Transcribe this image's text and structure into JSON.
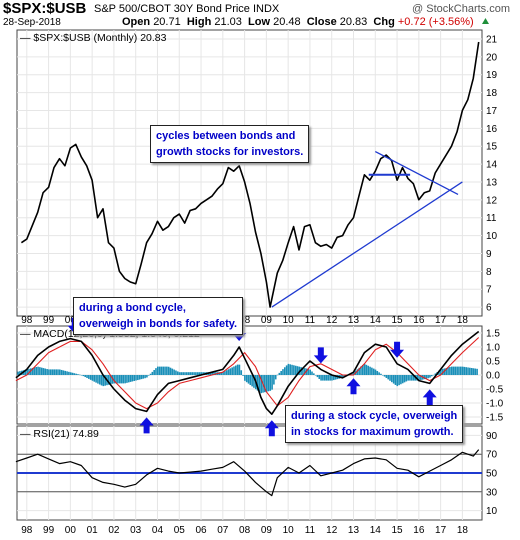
{
  "header": {
    "symbol": "$SPX:$USB",
    "name": "S&P 500/CBOT 30Y Bond Price INDX",
    "brand": "@ StockCharts.com",
    "date": "28-Sep-2018",
    "open_label": "Open",
    "open_value": "20.71",
    "high_label": "High",
    "high_value": "21.03",
    "low_label": "Low",
    "low_value": "20.48",
    "close_label": "Close",
    "close_value": "20.83",
    "chg_label": "Chg",
    "chg_value": "+0.72 (+3.56%)",
    "chg_arrow": "triangle-up-icon"
  },
  "annotations": {
    "cycles": [
      "cycles between bonds and",
      "growth stocks for investors."
    ],
    "bond_cycle": [
      "during a bond cycle,",
      "overweigh in bonds for safety."
    ],
    "stock_cycle": [
      "during a stock cycle, overweigh",
      "in stocks for maximum growth."
    ]
  },
  "colors": {
    "price_line": "#000000",
    "trendline": "#1f3ad0",
    "macd_line": "#000000",
    "signal_line": "#e02020",
    "histogram": "#1a8fb8",
    "arrow": "#1010e0",
    "annotation_text": "#0000c8",
    "rsi_level_line": "#1f3ad0"
  },
  "chart_data": [
    {
      "type": "line",
      "legend": "$SPX:$USB (Monthly) 20.83",
      "x_tick_labels": [
        "98",
        "99",
        "00",
        "01",
        "02",
        "03",
        "04",
        "05",
        "06",
        "07",
        "08",
        "09",
        "10",
        "11",
        "12",
        "13",
        "14",
        "15",
        "16",
        "17",
        "18"
      ],
      "ylim": [
        5.5,
        21.5
      ],
      "y_ticks": [
        6,
        7,
        8,
        9,
        10,
        11,
        12,
        13,
        14,
        15,
        16,
        17,
        18,
        19,
        20,
        21
      ],
      "series": [
        {
          "x": [
            1997.75,
            1998.0,
            1998.5,
            1998.75,
            1999.0,
            1999.25,
            1999.5,
            1999.75,
            2000.0,
            2000.25,
            2000.5,
            2000.75,
            2001.0,
            2001.25,
            2001.5,
            2001.75,
            2002.0,
            2002.25,
            2002.5,
            2002.75,
            2003.0,
            2003.25,
            2003.5,
            2003.75,
            2004.0,
            2004.25,
            2004.5,
            2004.75,
            2005.0,
            2005.25,
            2005.5,
            2005.75,
            2006.0,
            2006.25,
            2006.5,
            2006.75,
            2007.0,
            2007.25,
            2007.5,
            2007.75,
            2008.0,
            2008.25,
            2008.5,
            2008.75,
            2009.0,
            2009.17,
            2009.5,
            2009.75,
            2010.0,
            2010.25,
            2010.5,
            2010.75,
            2011.0,
            2011.25,
            2011.5,
            2011.75,
            2012.0,
            2012.25,
            2012.5,
            2012.75,
            2013.0,
            2013.25,
            2013.5,
            2013.75,
            2014.0,
            2014.25,
            2014.5,
            2014.75,
            2015.0,
            2015.25,
            2015.5,
            2015.75,
            2016.0,
            2016.25,
            2016.5,
            2016.75,
            2017.0,
            2017.25,
            2017.5,
            2017.75,
            2018.0,
            2018.25,
            2018.5,
            2018.75
          ],
          "values": [
            9.6,
            9.8,
            11.3,
            12.4,
            12.7,
            13.8,
            14.3,
            13.9,
            14.9,
            15.1,
            14.4,
            13.9,
            13.1,
            11.0,
            11.5,
            9.6,
            9.3,
            8.0,
            7.6,
            7.4,
            7.3,
            8.4,
            9.6,
            10.1,
            10.8,
            10.3,
            10.5,
            11.0,
            11.2,
            10.7,
            11.4,
            11.5,
            11.8,
            12.0,
            12.2,
            12.6,
            12.9,
            13.8,
            13.6,
            13.9,
            13.0,
            11.8,
            10.2,
            9.0,
            7.4,
            6.0,
            7.9,
            8.6,
            9.6,
            10.5,
            9.2,
            10.5,
            10.6,
            9.6,
            9.4,
            9.5,
            9.3,
            9.9,
            10.0,
            10.6,
            11.0,
            12.2,
            13.4,
            13.1,
            13.6,
            14.3,
            14.5,
            14.2,
            13.1,
            13.8,
            13.2,
            12.9,
            12.0,
            12.4,
            12.5,
            13.5,
            14.0,
            14.5,
            15.0,
            15.8,
            17.0,
            17.6,
            18.8,
            20.83
          ]
        }
      ],
      "trendlines": [
        {
          "points": [
            [
              2009.25,
              6.0
            ],
            [
              2018.0,
              13.0
            ]
          ]
        },
        {
          "points": [
            [
              2014.0,
              14.7
            ],
            [
              2017.8,
              12.3
            ]
          ]
        }
      ]
    },
    {
      "type": "line",
      "legend": "MACD(12,26,9) 1.552, 1.340, 0.212",
      "ylim": [
        -1.75,
        1.75
      ],
      "y_ticks": [
        1.5,
        1.0,
        0.5,
        0.0,
        -0.5,
        -1.0,
        -1.5
      ],
      "y_tick_labels": [
        "1.5",
        "1.0",
        "0.5",
        "0.0",
        "-0.5",
        "-1.0",
        "-1.5"
      ],
      "series": [
        {
          "name": "MACD",
          "x": [
            1997.5,
            1998.0,
            1998.5,
            1999.0,
            1999.5,
            2000.0,
            2000.5,
            2001.0,
            2001.5,
            2002.0,
            2002.5,
            2003.0,
            2003.5,
            2004.0,
            2004.5,
            2005.0,
            2005.5,
            2006.0,
            2006.5,
            2007.0,
            2007.5,
            2007.75,
            2008.0,
            2008.5,
            2008.75,
            2009.0,
            2009.25,
            2009.5,
            2010.0,
            2010.5,
            2011.0,
            2011.5,
            2012.0,
            2012.5,
            2013.0,
            2013.5,
            2014.0,
            2014.5,
            2015.0,
            2015.5,
            2016.0,
            2016.5,
            2017.0,
            2017.5,
            2018.0,
            2018.75
          ],
          "values": [
            -0.1,
            0.2,
            0.7,
            1.0,
            1.2,
            1.3,
            1.2,
            0.7,
            0.0,
            -0.5,
            -0.9,
            -1.2,
            -1.3,
            -0.7,
            -0.3,
            -0.2,
            -0.1,
            0.0,
            0.1,
            0.2,
            0.7,
            1.0,
            0.6,
            -0.2,
            -0.8,
            -1.2,
            -1.4,
            -1.1,
            -0.4,
            0.1,
            0.5,
            0.2,
            0.0,
            -0.1,
            0.1,
            0.8,
            1.1,
            1.0,
            0.4,
            0.2,
            -0.2,
            -0.3,
            0.2,
            0.7,
            1.1,
            1.552
          ]
        },
        {
          "name": "Signal",
          "x": [
            1997.5,
            1998.0,
            1998.5,
            1999.0,
            1999.5,
            2000.0,
            2000.5,
            2001.0,
            2001.5,
            2002.0,
            2002.5,
            2003.0,
            2003.5,
            2004.0,
            2004.5,
            2005.0,
            2005.5,
            2006.0,
            2006.5,
            2007.0,
            2007.5,
            2008.0,
            2008.5,
            2009.0,
            2009.5,
            2010.0,
            2010.5,
            2011.0,
            2011.5,
            2012.0,
            2012.5,
            2013.0,
            2013.5,
            2014.0,
            2014.5,
            2015.0,
            2015.5,
            2016.0,
            2016.5,
            2017.0,
            2017.5,
            2018.0,
            2018.75
          ],
          "values": [
            -0.2,
            0.0,
            0.4,
            0.8,
            1.0,
            1.2,
            1.2,
            0.9,
            0.4,
            -0.2,
            -0.6,
            -1.0,
            -1.2,
            -1.0,
            -0.6,
            -0.3,
            -0.2,
            -0.1,
            0.0,
            0.1,
            0.4,
            0.8,
            0.3,
            -0.6,
            -1.1,
            -0.8,
            -0.2,
            0.3,
            0.4,
            0.2,
            0.0,
            0.0,
            0.4,
            0.9,
            1.1,
            0.8,
            0.4,
            0.0,
            -0.2,
            0.0,
            0.4,
            0.8,
            1.34
          ]
        }
      ],
      "arrows": [
        {
          "x": 2000.2,
          "direction": "down"
        },
        {
          "x": 2003.5,
          "direction": "up"
        },
        {
          "x": 2007.75,
          "direction": "down"
        },
        {
          "x": 2009.25,
          "direction": "up"
        },
        {
          "x": 2011.5,
          "direction": "down"
        },
        {
          "x": 2013.0,
          "direction": "up"
        },
        {
          "x": 2015.0,
          "direction": "down"
        },
        {
          "x": 2016.5,
          "direction": "up"
        }
      ]
    },
    {
      "type": "line",
      "legend": "RSI(21) 74.89",
      "ylim": [
        0,
        100
      ],
      "y_ticks": [
        90,
        70,
        50,
        30,
        10
      ],
      "reference_lines": [
        70,
        50,
        30
      ],
      "series": [
        {
          "x": [
            1997.5,
            1998.0,
            1998.5,
            1999.0,
            1999.5,
            2000.0,
            2000.5,
            2001.0,
            2001.5,
            2002.0,
            2002.5,
            2003.0,
            2003.5,
            2004.0,
            2004.5,
            2005.0,
            2005.5,
            2006.0,
            2006.5,
            2007.0,
            2007.5,
            2008.0,
            2008.5,
            2009.0,
            2009.25,
            2009.5,
            2010.0,
            2010.5,
            2011.0,
            2011.5,
            2012.0,
            2012.5,
            2013.0,
            2013.5,
            2014.0,
            2014.5,
            2015.0,
            2015.5,
            2016.0,
            2016.5,
            2017.0,
            2017.5,
            2018.0,
            2018.5,
            2018.75
          ],
          "values": [
            62,
            66,
            70,
            65,
            60,
            62,
            58,
            45,
            40,
            38,
            35,
            38,
            48,
            55,
            52,
            50,
            51,
            52,
            54,
            56,
            62,
            52,
            40,
            30,
            26,
            45,
            56,
            50,
            58,
            47,
            50,
            53,
            60,
            65,
            66,
            64,
            55,
            53,
            46,
            52,
            58,
            64,
            72,
            68,
            74.89
          ]
        }
      ]
    }
  ]
}
